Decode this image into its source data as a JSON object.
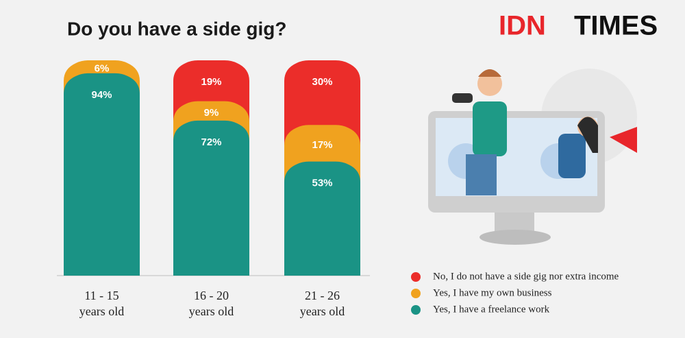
{
  "chart_data": {
    "type": "stacked-bar",
    "title": "Do you have a side gig?",
    "categories": [
      "11 - 15\nyears old",
      "16 - 20\nyears old",
      "21 - 26\nyears old"
    ],
    "series": [
      {
        "name": "No, I do not have a side gig nor extra income",
        "color": "#eb2d2a",
        "values": [
          null,
          19,
          30
        ],
        "value_labels": [
          null,
          "19%",
          "30%"
        ]
      },
      {
        "name": "Yes, I have my own business",
        "color": "#f0a21f",
        "values": [
          6,
          9,
          17
        ],
        "value_labels": [
          "6%",
          "9%",
          "17%"
        ]
      },
      {
        "name": "Yes, I have a freelance work",
        "color": "#1a9385",
        "values": [
          94,
          72,
          53
        ],
        "value_labels": [
          "94%",
          "72%",
          "53%"
        ]
      }
    ],
    "ylim": [
      0,
      100
    ]
  },
  "logo": [
    "IDN",
    "TIMES"
  ]
}
